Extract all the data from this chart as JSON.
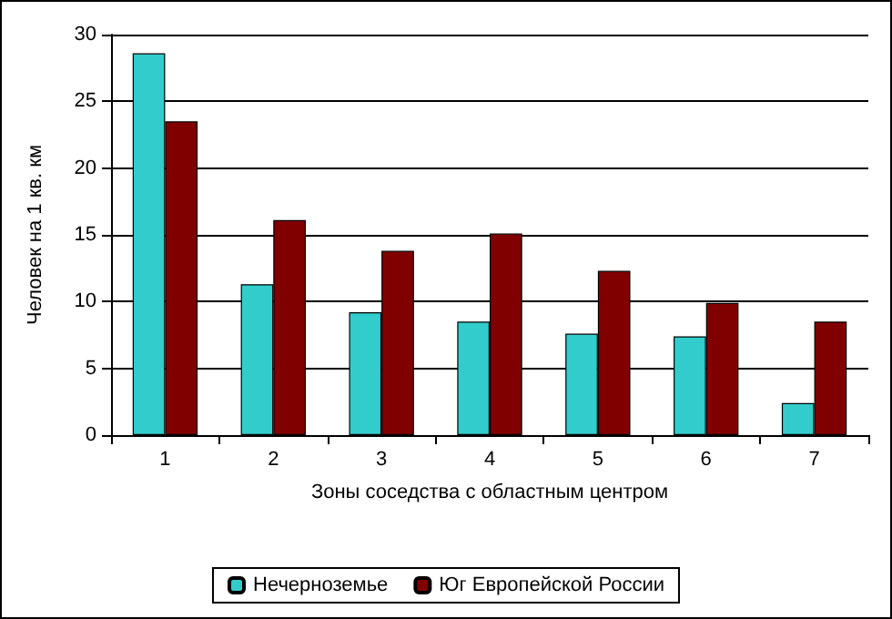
{
  "chart_data": {
    "type": "bar",
    "xlabel": "Зоны соседства с областным центром",
    "ylabel": "Человек на 1 кв. км",
    "categories": [
      "1",
      "2",
      "3",
      "4",
      "5",
      "6",
      "7"
    ],
    "series": [
      {
        "name": "Нечерноземье",
        "color": "#33cccc",
        "values": [
          28.6,
          11.3,
          9.2,
          8.5,
          7.6,
          7.4,
          2.4
        ]
      },
      {
        "name": "Юг Европейской России",
        "color": "#800000",
        "values": [
          23.5,
          16.1,
          13.8,
          15.1,
          12.3,
          9.9,
          8.5
        ]
      }
    ],
    "ylim": [
      0,
      30
    ],
    "yticks": [
      0,
      5,
      10,
      15,
      20,
      25,
      30
    ],
    "grid": "y",
    "legend": "bottom"
  }
}
